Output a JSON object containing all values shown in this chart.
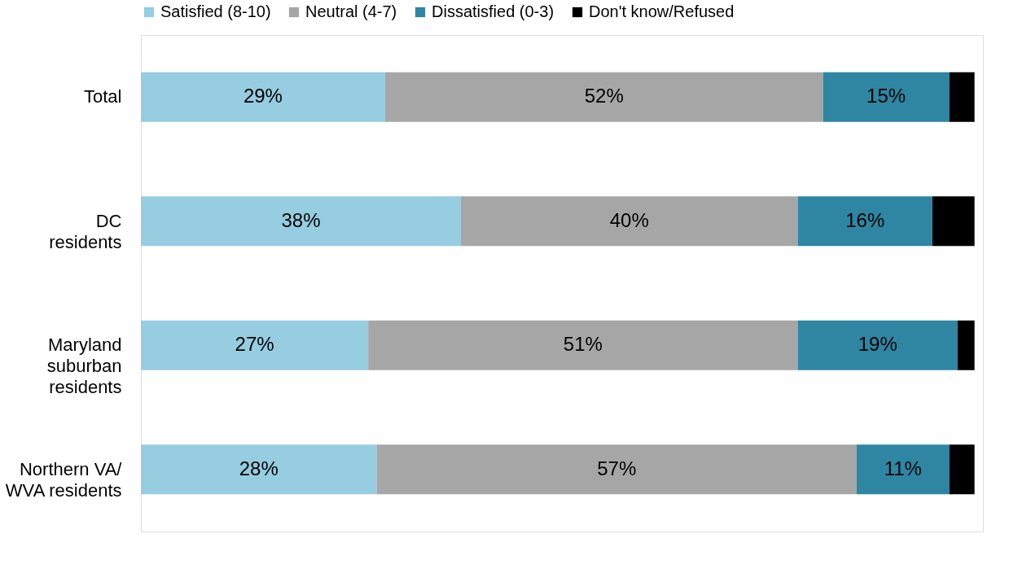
{
  "chart_data": {
    "type": "bar",
    "orientation": "horizontal",
    "stacked": true,
    "categories": [
      "Total",
      "DC\nresidents",
      "Maryland\nsuburban\nresidents",
      "Northern VA/\nWVA residents"
    ],
    "xlim": [
      0,
      100
    ],
    "tick_labels": "y",
    "grid": false,
    "legend": "top",
    "series": [
      {
        "name": "Satisfied (8-10)",
        "color": "#96cde0",
        "values": [
          29,
          38,
          27,
          28
        ],
        "value_labels": [
          "29%",
          "38%",
          "27%",
          "28%"
        ]
      },
      {
        "name": "Neutral (4-7)",
        "color": "#a6a6a6",
        "values": [
          52,
          40,
          51,
          57
        ],
        "value_labels": [
          "52%",
          "40%",
          "51%",
          "57%"
        ]
      },
      {
        "name": "Dissatisfied (0-3)",
        "color": "#2e86a3",
        "values": [
          15,
          16,
          19,
          11
        ],
        "value_labels": [
          "15%",
          "16%",
          "19%",
          "11%"
        ]
      },
      {
        "name": "Don't know/Refused",
        "color": "#000000",
        "values": [
          3,
          5,
          2,
          3
        ],
        "value_labels": [
          null,
          null,
          null,
          null
        ]
      }
    ]
  }
}
